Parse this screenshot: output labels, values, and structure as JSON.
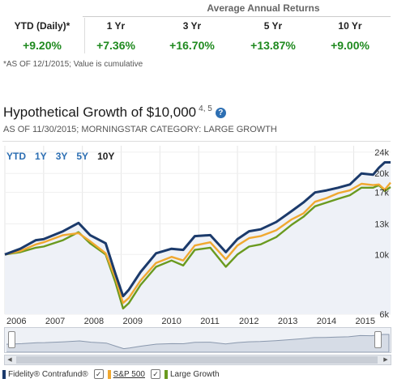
{
  "returns": {
    "group_header": "Average Annual Returns",
    "labels": [
      "YTD (Daily)*",
      "1 Yr",
      "3 Yr",
      "5 Yr",
      "10 Yr"
    ],
    "values": [
      "+9.20%",
      "+7.36%",
      "+16.70%",
      "+13.87%",
      "+9.00%"
    ],
    "note": "*AS OF 12/1/2015; Value is cumulative"
  },
  "growth": {
    "title": "Hypothetical Growth of $10,000",
    "footnote": "4, 5",
    "help": "?",
    "subtitle": "AS OF 11/30/2015; MORNINGSTAR CATEGORY: LARGE GROWTH",
    "periods": [
      "YTD",
      "1Y",
      "3Y",
      "5Y",
      "10Y"
    ],
    "active_period": "10Y"
  },
  "colors": {
    "fund": "#1b3a6b",
    "sp500": "#f0a830",
    "large_growth": "#6a9a1f",
    "value_green": "#1f8a1f",
    "link": "#2d6fb3"
  },
  "legend": [
    {
      "label": "Fidelity® Contrafund®",
      "checked": true,
      "color": "#1b3a6b"
    },
    {
      "label": "S&P 500",
      "checked": true,
      "color": "#f0a830"
    },
    {
      "label": "Large Growth",
      "checked": true,
      "color": "#6a9a1f"
    }
  ],
  "chart_data": {
    "type": "line",
    "y_scale": "log",
    "ylim": [
      6000,
      25000
    ],
    "xlim": [
      2006.0,
      2015.95
    ],
    "ytick_labels": [
      "24k",
      "20k",
      "17k",
      "13k",
      "10k",
      "6k"
    ],
    "ytick_values": [
      24000,
      20000,
      17000,
      13000,
      10000,
      6000
    ],
    "xtick_labels": [
      "2006",
      "2007",
      "2008",
      "2009",
      "2010",
      "2011",
      "2012",
      "2013",
      "2014",
      "2015"
    ],
    "xtick_values": [
      2006,
      2007,
      2008,
      2009,
      2010,
      2011,
      2012,
      2013,
      2014,
      2015
    ],
    "x": [
      2006.0,
      2006.4,
      2006.8,
      2007.0,
      2007.5,
      2007.9,
      2008.2,
      2008.6,
      2008.85,
      2009.05,
      2009.2,
      2009.5,
      2009.9,
      2010.3,
      2010.6,
      2010.9,
      2011.3,
      2011.7,
      2012.0,
      2012.3,
      2012.6,
      2013.0,
      2013.4,
      2013.7,
      2014.0,
      2014.3,
      2014.6,
      2014.9,
      2015.2,
      2015.5,
      2015.65,
      2015.8,
      2015.95
    ],
    "series": [
      {
        "name": "Fidelity® Contrafund®",
        "values": [
          10000,
          10500,
          11300,
          11400,
          12200,
          13100,
          11800,
          11000,
          8500,
          7000,
          7400,
          8600,
          10100,
          10500,
          10400,
          11700,
          11800,
          10200,
          11400,
          12200,
          12400,
          13200,
          14500,
          15600,
          17000,
          17300,
          17700,
          18200,
          20000,
          19800,
          21000,
          22000,
          22000
        ]
      },
      {
        "name": "S&P 500",
        "values": [
          10000,
          10300,
          10900,
          11100,
          11800,
          12000,
          11200,
          10100,
          8200,
          6600,
          6900,
          8000,
          9300,
          9800,
          9500,
          10800,
          11100,
          9600,
          10800,
          11500,
          11700,
          12300,
          13500,
          14200,
          15700,
          16200,
          16900,
          17300,
          18300,
          18100,
          18200,
          17400,
          18500
        ]
      },
      {
        "name": "Large Growth",
        "values": [
          10000,
          10200,
          10600,
          10700,
          11300,
          12100,
          11000,
          10000,
          7900,
          6300,
          6600,
          7700,
          9000,
          9500,
          9100,
          10400,
          10600,
          9000,
          10000,
          10700,
          10900,
          11600,
          12900,
          13800,
          15100,
          15600,
          16100,
          16600,
          17700,
          17700,
          18100,
          17200,
          17800
        ]
      }
    ]
  }
}
